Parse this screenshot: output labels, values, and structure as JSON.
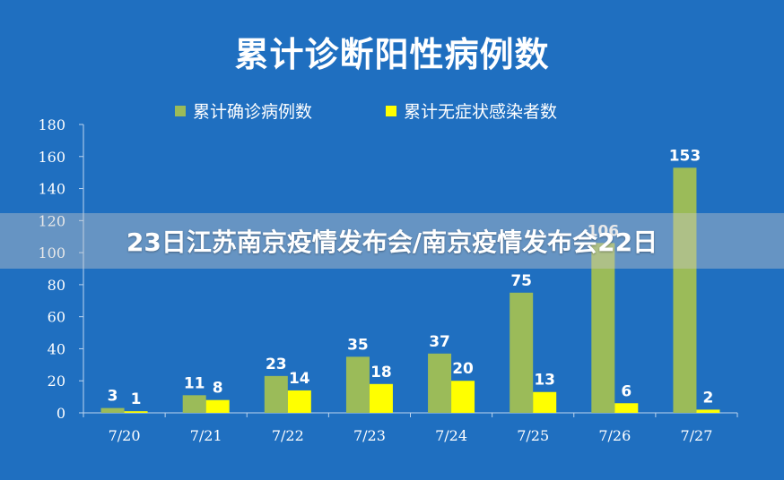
{
  "colors": {
    "background": "#1f6fc0",
    "series_confirmed": "#9bbb59",
    "series_asymptomatic": "#ffff00",
    "axis": "#bcd4ef"
  },
  "chart_data": {
    "type": "bar",
    "title": "累计诊断阳性病例数",
    "xlabel": "",
    "ylabel": "",
    "categories": [
      "7/20",
      "7/21",
      "7/22",
      "7/23",
      "7/24",
      "7/25",
      "7/26",
      "7/27"
    ],
    "series": [
      {
        "name": "累计确诊病例数",
        "color": "#9bbb59",
        "values": [
          3,
          11,
          23,
          35,
          37,
          75,
          106,
          153
        ]
      },
      {
        "name": "累计无症状感染者数",
        "color": "#ffff00",
        "values": [
          1,
          8,
          14,
          18,
          20,
          13,
          6,
          2
        ]
      }
    ],
    "ylim": [
      0,
      180
    ],
    "yticks": [
      0,
      20,
      40,
      60,
      80,
      100,
      120,
      140,
      160,
      180
    ],
    "grid": false,
    "legend_position": "top"
  },
  "overlay": {
    "caption": "23日江苏南京疫情发布会/南京疫情发布会22日"
  }
}
